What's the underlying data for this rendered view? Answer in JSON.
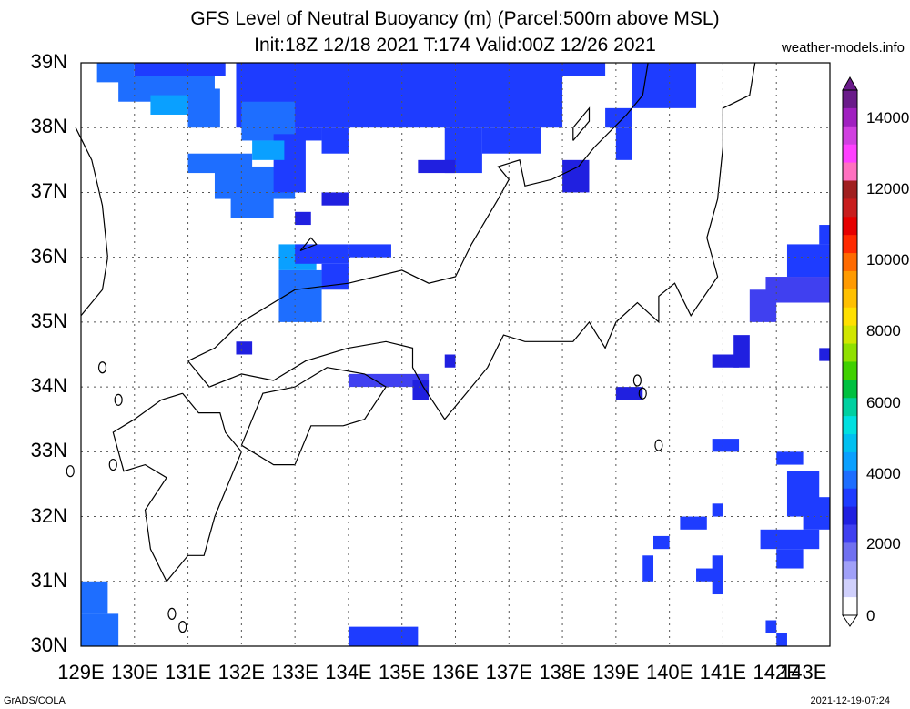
{
  "header": {
    "title_line1": "GFS Level of Neutral Buoyancy (m) (Parcel:500m above MSL)",
    "title_line2": "Init:18Z 12/18 2021 T:174 Valid:00Z 12/26 2021",
    "site": "weather-models.info"
  },
  "footer": {
    "left": "GrADS/COLA",
    "right": "2021-12-19-07:24"
  },
  "map": {
    "lat_labels": [
      "39N",
      "38N",
      "37N",
      "36N",
      "35N",
      "34N",
      "33N",
      "32N",
      "31N",
      "30N"
    ],
    "lon_labels": [
      "129E",
      "130E",
      "131E",
      "132E",
      "133E",
      "134E",
      "135E",
      "136E",
      "137E",
      "138E",
      "139E",
      "140E",
      "141E",
      "142E",
      "143E"
    ],
    "grid_style": "dotted",
    "coastline_color": "#000000"
  },
  "colorbar": {
    "labels": [
      "14000",
      "12000",
      "10000",
      "8000",
      "6000",
      "4000",
      "2000",
      "0"
    ],
    "colors": [
      "#6a1b8a",
      "#a020c0",
      "#d040e0",
      "#ff40ff",
      "#ff70c0",
      "#a02020",
      "#c81e1e",
      "#e60000",
      "#ff2a00",
      "#ff6a00",
      "#ff9a00",
      "#ffc000",
      "#ffe000",
      "#d0e600",
      "#90e000",
      "#40d000",
      "#00c040",
      "#00d0a0",
      "#00e0e0",
      "#00c0f0",
      "#0aa0ff",
      "#1e6eff",
      "#1e3cff",
      "#2020e0",
      "#4040f0",
      "#7070f0",
      "#a0a0f8",
      "#d0d0fc",
      "#ffffff"
    ]
  }
}
